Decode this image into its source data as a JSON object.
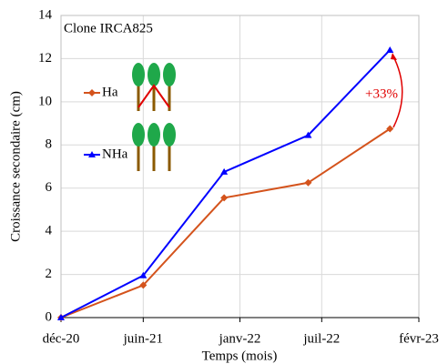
{
  "chart_data": {
    "type": "line",
    "x_label": "Temps (mois)",
    "y_label": "Croissance secondaire (cm)",
    "annotations": [
      "Clone IRCA825",
      "+33%"
    ],
    "x": [
      0,
      182,
      361,
      547,
      728
    ],
    "xlim": [
      0,
      792
    ],
    "xticks": [
      {
        "value": 0,
        "label": "déc-20"
      },
      {
        "value": 182,
        "label": "juin-21"
      },
      {
        "value": 396,
        "label": "janv-22"
      },
      {
        "value": 577,
        "label": "juil-22"
      },
      {
        "value": 792,
        "label": "févr-23"
      }
    ],
    "ylim": [
      0,
      14
    ],
    "yticks": [
      0,
      2,
      4,
      6,
      8,
      10,
      12,
      14
    ],
    "grid": true,
    "series": [
      {
        "name": "Ha",
        "color": "#d4531c",
        "marker": "diamond",
        "values": [
          0,
          1.5,
          5.55,
          6.25,
          8.75
        ]
      },
      {
        "name": "NHa",
        "color": "#0000ff",
        "marker": "triangle",
        "values": [
          0,
          1.95,
          6.75,
          8.45,
          12.4
        ]
      }
    ]
  }
}
